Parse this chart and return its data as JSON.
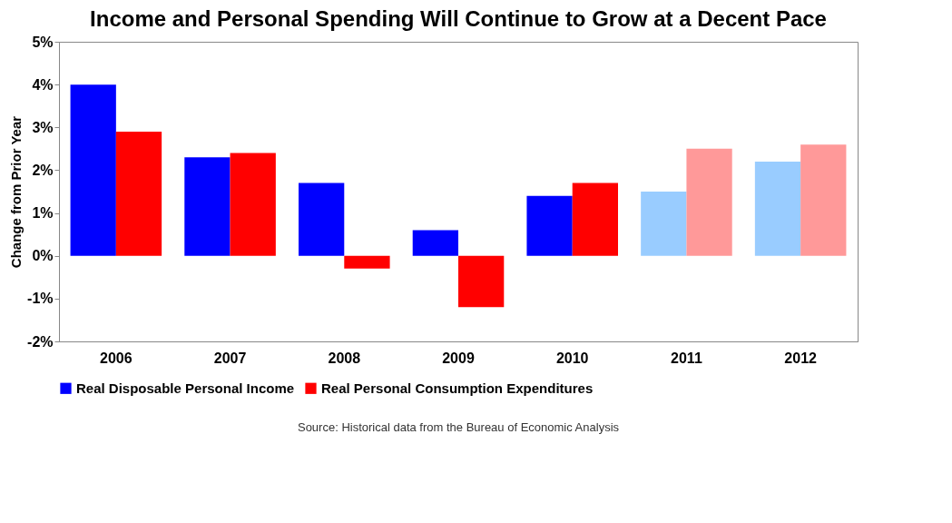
{
  "chart_data": {
    "type": "bar",
    "title": "Income and Personal Spending Will Continue to Grow at a Decent Pace",
    "ylabel": "Change from Prior Year",
    "categories": [
      "2006",
      "2007",
      "2008",
      "2009",
      "2010",
      "2011",
      "2012"
    ],
    "series": [
      {
        "name": "Real Disposable Personal Income",
        "color": "#0000ff",
        "colors": [
          "#0000ff",
          "#0000ff",
          "#0000ff",
          "#0000ff",
          "#0000ff",
          "#99ccff",
          "#99ccff"
        ],
        "values": [
          4.0,
          2.3,
          1.7,
          0.6,
          1.4,
          1.5,
          2.2
        ]
      },
      {
        "name": "Real Personal Consumption Expenditures",
        "color": "#ff0000",
        "colors": [
          "#ff0000",
          "#ff0000",
          "#ff0000",
          "#ff0000",
          "#ff0000",
          "#ff9999",
          "#ff9999"
        ],
        "values": [
          2.9,
          2.4,
          -0.3,
          -1.2,
          1.7,
          2.5,
          2.6
        ]
      }
    ],
    "ylim": [
      -2,
      5
    ],
    "yticks": [
      {
        "value": -2,
        "label": "-2%"
      },
      {
        "value": -1,
        "label": "-1%"
      },
      {
        "value": 0,
        "label": "0%"
      },
      {
        "value": 1,
        "label": "1%"
      },
      {
        "value": 2,
        "label": "2%"
      },
      {
        "value": 3,
        "label": "3%"
      },
      {
        "value": 4,
        "label": "4%"
      },
      {
        "value": 5,
        "label": "5%"
      }
    ],
    "legend": "bottom",
    "grid": false,
    "annotations": [
      "Source: Historical data from the Bureau of Economic Analysis"
    ]
  }
}
